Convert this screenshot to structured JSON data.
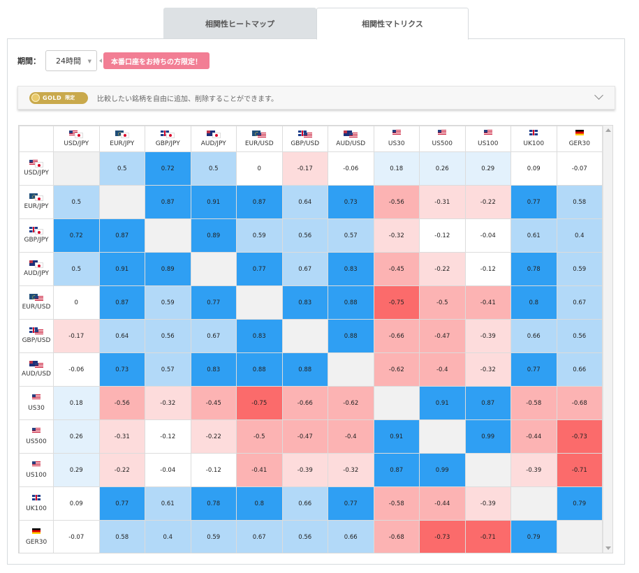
{
  "tabs": [
    {
      "label": "相関性ヒートマップ",
      "active": false
    },
    {
      "label": "相関性マトリクス",
      "active": true
    }
  ],
  "period": {
    "label": "期間：",
    "selected": "24時間"
  },
  "promo": {
    "label": "本番口座をお持ちの方限定！"
  },
  "gold_bar": {
    "badge": "GOLD",
    "badge_sub": "限定",
    "description": "比較したい銘柄を自由に追加、削除することができます。"
  },
  "colors": {
    "strong_positive": "#2f9ff3",
    "positive": "#b2d9f8",
    "weak_positive": "#e3f1fc",
    "neutral": "#ffffff",
    "weak_negative": "#fddcdc",
    "negative": "#fcb3b3",
    "strong_negative": "#fb6b6b",
    "diagonal": "#f1f1f1"
  },
  "matrix": {
    "symbols": [
      {
        "name": "USD/JPY",
        "flags": [
          "us",
          "jp"
        ]
      },
      {
        "name": "EUR/JPY",
        "flags": [
          "eu",
          "jp"
        ]
      },
      {
        "name": "GBP/JPY",
        "flags": [
          "gb",
          "jp"
        ]
      },
      {
        "name": "AUD/JPY",
        "flags": [
          "au",
          "jp"
        ]
      },
      {
        "name": "EUR/USD",
        "flags": [
          "eu",
          "us"
        ]
      },
      {
        "name": "GBP/USD",
        "flags": [
          "gb",
          "us"
        ]
      },
      {
        "name": "AUD/USD",
        "flags": [
          "au",
          "us"
        ]
      },
      {
        "name": "US30",
        "flags": [
          "us"
        ]
      },
      {
        "name": "US500",
        "flags": [
          "us"
        ]
      },
      {
        "name": "US100",
        "flags": [
          "us"
        ]
      },
      {
        "name": "UK100",
        "flags": [
          "gb"
        ]
      },
      {
        "name": "GER30",
        "flags": [
          "de"
        ]
      }
    ],
    "values": [
      [
        null,
        "0.5",
        "0.72",
        "0.5",
        "0",
        "-0.17",
        "-0.06",
        "0.18",
        "0.26",
        "0.29",
        "0.09",
        "-0.07"
      ],
      [
        "0.5",
        null,
        "0.87",
        "0.91",
        "0.87",
        "0.64",
        "0.73",
        "-0.56",
        "-0.31",
        "-0.22",
        "0.77",
        "0.58"
      ],
      [
        "0.72",
        "0.87",
        null,
        "0.89",
        "0.59",
        "0.56",
        "0.57",
        "-0.32",
        "-0.12",
        "-0.04",
        "0.61",
        "0.4"
      ],
      [
        "0.5",
        "0.91",
        "0.89",
        null,
        "0.77",
        "0.67",
        "0.83",
        "-0.45",
        "-0.22",
        "-0.12",
        "0.78",
        "0.59"
      ],
      [
        "0",
        "0.87",
        "0.59",
        "0.77",
        null,
        "0.83",
        "0.88",
        "-0.75",
        "-0.5",
        "-0.41",
        "0.8",
        "0.67"
      ],
      [
        "-0.17",
        "0.64",
        "0.56",
        "0.67",
        "0.83",
        null,
        "0.88",
        "-0.66",
        "-0.47",
        "-0.39",
        "0.66",
        "0.56"
      ],
      [
        "-0.06",
        "0.73",
        "0.57",
        "0.83",
        "0.88",
        "0.88",
        null,
        "-0.62",
        "-0.4",
        "-0.32",
        "0.77",
        "0.66"
      ],
      [
        "0.18",
        "-0.56",
        "-0.32",
        "-0.45",
        "-0.75",
        "-0.66",
        "-0.62",
        null,
        "0.91",
        "0.87",
        "-0.58",
        "-0.68"
      ],
      [
        "0.26",
        "-0.31",
        "-0.12",
        "-0.22",
        "-0.5",
        "-0.47",
        "-0.4",
        "0.91",
        null,
        "0.99",
        "-0.44",
        "-0.73"
      ],
      [
        "0.29",
        "-0.22",
        "-0.04",
        "-0.12",
        "-0.41",
        "-0.39",
        "-0.32",
        "0.87",
        "0.99",
        null,
        "-0.39",
        "-0.71"
      ],
      [
        "0.09",
        "0.77",
        "0.61",
        "0.78",
        "0.8",
        "0.66",
        "0.77",
        "-0.58",
        "-0.44",
        "-0.39",
        null,
        "0.79"
      ],
      [
        "-0.07",
        "0.58",
        "0.4",
        "0.59",
        "0.67",
        "0.56",
        "0.66",
        "-0.68",
        "-0.73",
        "-0.71",
        "0.79",
        null
      ]
    ]
  }
}
